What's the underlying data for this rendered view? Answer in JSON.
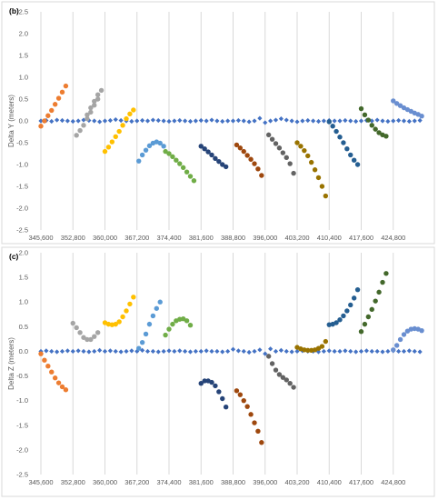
{
  "chart_data": [
    {
      "type": "scatter",
      "panel_label": "(b)",
      "ylabel": "Delta Y (meters)",
      "xlim": [
        345600,
        432000
      ],
      "ylim": [
        -2.5,
        2.5
      ],
      "x_ticks": [
        345600,
        352800,
        360000,
        367200,
        374400,
        381600,
        388800,
        396000,
        403200,
        410400,
        417600,
        424800
      ],
      "x_tick_labels": [
        "345,600",
        "352,800",
        "360,000",
        "367,200",
        "374,400",
        "381,600",
        "388,800",
        "396,000",
        "403,200",
        "410,400",
        "417,600",
        "424,800"
      ],
      "y_ticks": [
        -2.5,
        -2.0,
        -1.5,
        -1.0,
        -0.5,
        0.0,
        0.5,
        1.0,
        1.5,
        2.0,
        2.5
      ],
      "y_tick_labels": [
        "-2.5",
        "-2.0",
        "-1.5",
        "-1.0",
        "-0.5",
        "0.0",
        "0.5",
        "1.0",
        "1.5",
        "2.0",
        "2.5"
      ],
      "grid": "vertical",
      "series": [
        {
          "color": "#4472c4",
          "marker": "diamond",
          "x": [
            345600,
            346800,
            348000,
            349200,
            350400,
            351600,
            352800,
            354000,
            355200,
            356400,
            357600,
            358800,
            360000,
            361200,
            362400,
            363600,
            364800,
            366000,
            367200,
            368400,
            369600,
            370800,
            372000,
            373200,
            374400,
            375600,
            376800,
            378000,
            379200,
            380400,
            381600,
            382800,
            384000,
            385200,
            386400,
            387600,
            388800,
            390000,
            391200,
            392400,
            393600,
            394800,
            396000,
            397200,
            398400,
            399600,
            400800,
            402000,
            403200,
            404400,
            405600,
            406800,
            408000,
            409200,
            410400,
            411600,
            412800,
            414000,
            415200,
            416400,
            417600,
            418800,
            420000,
            421200,
            422400,
            423600,
            424800,
            426000,
            427200,
            428400,
            429600,
            430800
          ],
          "y": [
            0.0,
            0.01,
            -0.01,
            0.02,
            0.01,
            0.0,
            -0.01,
            0.0,
            0.02,
            0.01,
            0.0,
            -0.02,
            0.0,
            0.01,
            0.03,
            0.01,
            0.0,
            -0.01,
            0.0,
            0.01,
            0.0,
            0.02,
            0.01,
            0.0,
            -0.01,
            0.0,
            0.01,
            0.0,
            -0.01,
            0.0,
            0.01,
            0.0,
            0.02,
            0.0,
            -0.01,
            0.0,
            0.0,
            0.01,
            0.0,
            -0.02,
            0.0,
            0.06,
            -0.04,
            0.0,
            0.02,
            0.05,
            0.02,
            0.0,
            -0.02,
            0.0,
            0.01,
            0.0,
            -0.01,
            0.0,
            0.01,
            0.0,
            0.0,
            0.01,
            0.0,
            -0.01,
            0.0,
            0.01,
            0.0,
            0.02,
            0.0,
            -0.01,
            0.0,
            0.01,
            0.0,
            -0.01,
            0.0,
            0.01
          ]
        },
        {
          "color": "#ed7d31",
          "marker": "circle",
          "x": [
            345600,
            346400,
            347200,
            348000,
            348800,
            349600,
            350400,
            351200
          ],
          "y": [
            -0.12,
            0.0,
            0.12,
            0.24,
            0.38,
            0.52,
            0.66,
            0.8
          ]
        },
        {
          "color": "#a5a5a5",
          "marker": "circle",
          "x": [
            353600,
            354400,
            355200,
            356000,
            356800,
            357600,
            358400
          ],
          "y": [
            -0.33,
            -0.22,
            -0.1,
            0.05,
            0.2,
            0.36,
            0.5
          ]
        },
        {
          "color": "#a5a5a5",
          "marker": "circle",
          "x": [
            356000,
            356800,
            357600,
            358400,
            359200
          ],
          "y": [
            0.14,
            0.3,
            0.45,
            0.6,
            0.7
          ]
        },
        {
          "color": "#ffc000",
          "marker": "circle",
          "x": [
            360000,
            360800,
            361600,
            362400,
            363200,
            364000,
            364800,
            365600,
            366400
          ],
          "y": [
            -0.7,
            -0.6,
            -0.48,
            -0.36,
            -0.24,
            -0.1,
            0.05,
            0.16,
            0.25
          ]
        },
        {
          "color": "#5b9bd5",
          "marker": "circle",
          "x": [
            367600,
            368400,
            369200,
            370000,
            370800,
            371600,
            372400,
            373200
          ],
          "y": [
            -0.92,
            -0.78,
            -0.67,
            -0.57,
            -0.51,
            -0.48,
            -0.51,
            -0.58
          ]
        },
        {
          "color": "#70ad47",
          "marker": "circle",
          "x": [
            373600,
            374400,
            375200,
            376000,
            376800,
            377600,
            378400,
            379200,
            380000
          ],
          "y": [
            -0.7,
            -0.75,
            -0.82,
            -0.9,
            -0.98,
            -1.07,
            -1.17,
            -1.27,
            -1.37
          ]
        },
        {
          "color": "#264478",
          "marker": "circle",
          "x": [
            381600,
            382400,
            383200,
            384000,
            384800,
            385600,
            386400,
            387200
          ],
          "y": [
            -0.58,
            -0.64,
            -0.71,
            -0.78,
            -0.86,
            -0.93,
            -1.0,
            -1.05
          ]
        },
        {
          "color": "#9e480e",
          "marker": "circle",
          "x": [
            389600,
            390400,
            391200,
            392000,
            392800,
            393600,
            394400,
            395200
          ],
          "y": [
            -0.55,
            -0.62,
            -0.7,
            -0.79,
            -0.88,
            -0.98,
            -1.1,
            -1.25
          ]
        },
        {
          "color": "#636363",
          "marker": "circle",
          "x": [
            396800,
            397600,
            398400,
            399200,
            400000,
            400800,
            401600,
            402400
          ],
          "y": [
            -0.32,
            -0.42,
            -0.52,
            -0.62,
            -0.73,
            -0.84,
            -0.98,
            -1.2
          ]
        },
        {
          "color": "#997300",
          "marker": "circle",
          "x": [
            403200,
            404000,
            404800,
            405600,
            406400,
            407200,
            408000,
            408800,
            409600
          ],
          "y": [
            -0.5,
            -0.58,
            -0.68,
            -0.8,
            -0.95,
            -1.12,
            -1.3,
            -1.5,
            -1.72
          ]
        },
        {
          "color": "#255e91",
          "marker": "circle",
          "x": [
            410400,
            411200,
            412000,
            412800,
            413600,
            414400,
            415200,
            416000,
            416800
          ],
          "y": [
            -0.02,
            -0.12,
            -0.24,
            -0.37,
            -0.5,
            -0.64,
            -0.78,
            -0.9,
            -1.0
          ]
        },
        {
          "color": "#43682b",
          "marker": "circle",
          "x": [
            417600,
            418400,
            419200,
            420000,
            420800,
            421600,
            422400,
            423200
          ],
          "y": [
            0.28,
            0.14,
            0.02,
            -0.1,
            -0.19,
            -0.27,
            -0.32,
            -0.35
          ]
        },
        {
          "color": "#698ed0",
          "marker": "circle",
          "x": [
            424800,
            425600,
            426400,
            427200,
            428000,
            428800,
            429600,
            430400,
            431200
          ],
          "y": [
            0.46,
            0.4,
            0.35,
            0.3,
            0.26,
            0.22,
            0.18,
            0.15,
            0.11
          ]
        }
      ]
    },
    {
      "type": "scatter",
      "panel_label": "(c)",
      "ylabel": "Delta Z (meters)",
      "xlim": [
        345600,
        432000
      ],
      "ylim": [
        -2.5,
        2.0
      ],
      "x_ticks": [
        345600,
        352800,
        360000,
        367200,
        374400,
        381600,
        388800,
        396000,
        403200,
        410400,
        417600,
        424800
      ],
      "x_tick_labels": [
        "345,600",
        "352,800",
        "360,000",
        "367,200",
        "374,400",
        "381,600",
        "388,800",
        "396,000",
        "403,200",
        "410,400",
        "417,600",
        "424,800"
      ],
      "y_ticks": [
        -2.5,
        -2.0,
        -1.5,
        -1.0,
        -0.5,
        0.0,
        0.5,
        1.0,
        1.5,
        2.0
      ],
      "y_tick_labels": [
        "-2.5",
        "-2.0",
        "-1.5",
        "-1.0",
        "-0.5",
        "0.0",
        "0.5",
        "1.0",
        "1.5",
        "2.0"
      ],
      "grid": "vertical",
      "series": [
        {
          "color": "#4472c4",
          "marker": "diamond",
          "x": [
            345600,
            346800,
            348000,
            349200,
            350400,
            351600,
            352800,
            354000,
            355200,
            356400,
            357600,
            358800,
            360000,
            361200,
            362400,
            363600,
            364800,
            366000,
            367200,
            368400,
            369600,
            370800,
            372000,
            373200,
            374400,
            375600,
            376800,
            378000,
            379200,
            380400,
            381600,
            382800,
            384000,
            385200,
            386400,
            387600,
            388800,
            390000,
            391200,
            392400,
            393600,
            394800,
            396000,
            397200,
            398400,
            399600,
            400800,
            402000,
            403200,
            404400,
            405600,
            406800,
            408000,
            409200,
            410400,
            411600,
            412800,
            414000,
            415200,
            416400,
            417600,
            418800,
            420000,
            421200,
            422400,
            423600,
            424800,
            426000,
            427200,
            428400,
            429600,
            430800
          ],
          "y": [
            0.0,
            0.01,
            0.0,
            -0.01,
            0.0,
            0.01,
            0.0,
            0.01,
            0.0,
            -0.01,
            0.0,
            0.02,
            0.0,
            0.01,
            0.0,
            -0.01,
            0.0,
            0.01,
            0.0,
            0.02,
            0.0,
            0.0,
            -0.01,
            0.0,
            0.01,
            0.0,
            0.01,
            0.0,
            -0.01,
            0.0,
            0.0,
            0.01,
            0.0,
            0.0,
            -0.01,
            0.0,
            0.04,
            0.01,
            0.0,
            -0.02,
            0.0,
            0.03,
            -0.05,
            0.05,
            0.0,
            0.02,
            0.0,
            -0.01,
            0.0,
            0.01,
            0.0,
            0.0,
            -0.01,
            0.0,
            0.01,
            0.0,
            0.0,
            0.01,
            0.0,
            -0.01,
            0.0,
            0.01,
            0.0,
            0.0,
            -0.01,
            0.0,
            0.01,
            0.0,
            0.0,
            0.01,
            0.0,
            -0.01
          ]
        },
        {
          "color": "#ed7d31",
          "marker": "circle",
          "x": [
            345600,
            346400,
            347200,
            348000,
            348800,
            349600,
            350400,
            351200
          ],
          "y": [
            -0.05,
            -0.18,
            -0.3,
            -0.42,
            -0.54,
            -0.64,
            -0.72,
            -0.78
          ]
        },
        {
          "color": "#a5a5a5",
          "marker": "circle",
          "x": [
            352800,
            353600,
            354400,
            355200,
            356000,
            356800,
            357600,
            358400
          ],
          "y": [
            0.57,
            0.48,
            0.38,
            0.28,
            0.24,
            0.24,
            0.3,
            0.38
          ]
        },
        {
          "color": "#ffc000",
          "marker": "circle",
          "x": [
            360000,
            360800,
            361600,
            362400,
            363200,
            364000,
            364800,
            365600,
            366400
          ],
          "y": [
            0.58,
            0.55,
            0.54,
            0.55,
            0.6,
            0.7,
            0.82,
            0.96,
            1.1
          ]
        },
        {
          "color": "#5b9bd5",
          "marker": "circle",
          "x": [
            367600,
            368400,
            369200,
            370000,
            370800,
            371600,
            372400
          ],
          "y": [
            0.06,
            0.18,
            0.35,
            0.55,
            0.72,
            0.87,
            1.0
          ]
        },
        {
          "color": "#70ad47",
          "marker": "circle",
          "x": [
            373600,
            374400,
            375200,
            376000,
            376800,
            377600,
            378400,
            379200
          ],
          "y": [
            0.33,
            0.45,
            0.55,
            0.62,
            0.65,
            0.66,
            0.62,
            0.53
          ]
        },
        {
          "color": "#264478",
          "marker": "circle",
          "x": [
            381600,
            382400,
            383200,
            384000,
            384800,
            385600,
            386400,
            387200
          ],
          "y": [
            -0.65,
            -0.6,
            -0.6,
            -0.63,
            -0.7,
            -0.82,
            -0.96,
            -1.13
          ]
        },
        {
          "color": "#9e480e",
          "marker": "circle",
          "x": [
            389600,
            390400,
            391200,
            392000,
            392800,
            393600,
            394400,
            395200
          ],
          "y": [
            -0.8,
            -0.88,
            -1.0,
            -1.12,
            -1.28,
            -1.45,
            -1.62,
            -1.85
          ]
        },
        {
          "color": "#636363",
          "marker": "circle",
          "x": [
            396800,
            397600,
            398400,
            399200,
            400000,
            400800,
            401600,
            402400
          ],
          "y": [
            -0.1,
            -0.25,
            -0.38,
            -0.47,
            -0.53,
            -0.58,
            -0.65,
            -0.73
          ]
        },
        {
          "color": "#997300",
          "marker": "circle",
          "x": [
            403200,
            404000,
            404800,
            405600,
            406400,
            407200,
            408000,
            408800,
            409600
          ],
          "y": [
            0.08,
            0.05,
            0.03,
            0.02,
            0.02,
            0.03,
            0.06,
            0.1,
            0.2
          ]
        },
        {
          "color": "#255e91",
          "marker": "circle",
          "x": [
            410400,
            411200,
            412000,
            412800,
            413600,
            414400,
            415200,
            416000,
            416800
          ],
          "y": [
            0.54,
            0.55,
            0.58,
            0.64,
            0.72,
            0.82,
            0.94,
            1.08,
            1.25
          ]
        },
        {
          "color": "#43682b",
          "marker": "circle",
          "x": [
            417600,
            418400,
            419200,
            420000,
            420800,
            421600,
            422400,
            423200
          ],
          "y": [
            0.4,
            0.55,
            0.7,
            0.85,
            1.02,
            1.2,
            1.4,
            1.58
          ]
        },
        {
          "color": "#698ed0",
          "marker": "circle",
          "x": [
            424800,
            425600,
            426400,
            427200,
            428000,
            428800,
            429600,
            430400,
            431200
          ],
          "y": [
            0.03,
            0.12,
            0.24,
            0.34,
            0.41,
            0.45,
            0.46,
            0.45,
            0.42
          ]
        }
      ]
    }
  ]
}
